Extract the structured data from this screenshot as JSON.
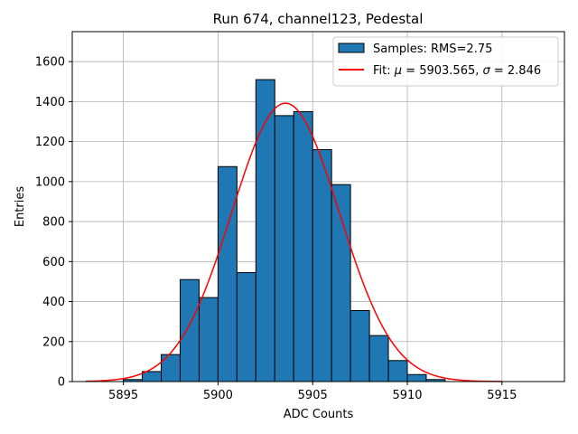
{
  "chart_data": {
    "type": "bar",
    "title": "Run 674, channel123, Pedestal",
    "xlabel": "ADC Counts",
    "ylabel": "Entries",
    "xlim": [
      5892.3,
      5918.3
    ],
    "ylim": [
      0,
      1750
    ],
    "x_ticks": [
      5895,
      5900,
      5905,
      5910,
      5915
    ],
    "y_ticks": [
      0,
      200,
      400,
      600,
      800,
      1000,
      1200,
      1400,
      1600
    ],
    "grid": true,
    "legend_position": "top-right",
    "histogram": {
      "name": "Samples: RMS=2.75",
      "color": "#1f77b4",
      "edgecolor": "#000000",
      "bin_edges": [
        5895,
        5896,
        5897,
        5898,
        5899,
        5900,
        5901,
        5902,
        5903,
        5904,
        5905,
        5906,
        5907,
        5908,
        5909,
        5910,
        5911,
        5912
      ],
      "counts": [
        10,
        50,
        135,
        510,
        420,
        1075,
        545,
        1510,
        1330,
        1350,
        1160,
        985,
        355,
        230,
        105,
        35,
        10
      ]
    },
    "fit": {
      "name_prefix": "Fit: ",
      "mu_symbol": "μ",
      "mu_text": " = 5903.565, ",
      "sigma_symbol": "σ",
      "sigma_text": " = 2.846",
      "mu": 5903.565,
      "sigma": 2.846,
      "amplitude": 1392,
      "x_range": [
        5893,
        5915
      ],
      "color": "#ff0000"
    }
  }
}
